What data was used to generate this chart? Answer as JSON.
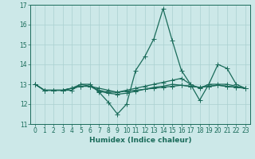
{
  "xlabel": "Humidex (Indice chaleur)",
  "ylabel": "",
  "bg_color": "#cce8e8",
  "grid_color": "#aad0d0",
  "line_color": "#1a6b5a",
  "spine_color": "#1a6b5a",
  "xlim": [
    -0.5,
    23.5
  ],
  "ylim": [
    11,
    17
  ],
  "yticks": [
    11,
    12,
    13,
    14,
    15,
    16,
    17
  ],
  "xticks": [
    0,
    1,
    2,
    3,
    4,
    5,
    6,
    7,
    8,
    9,
    10,
    11,
    12,
    13,
    14,
    15,
    16,
    17,
    18,
    19,
    20,
    21,
    22,
    23
  ],
  "series": [
    {
      "x": [
        0,
        1,
        2,
        3,
        4,
        5,
        6,
        7,
        8,
        9,
        10,
        11,
        12,
        13,
        14,
        15,
        16,
        17,
        18,
        19,
        20,
        21,
        22,
        23
      ],
      "y": [
        13,
        12.7,
        12.7,
        12.7,
        12.7,
        13.0,
        13.0,
        12.6,
        12.1,
        11.5,
        12.0,
        13.7,
        14.4,
        15.3,
        16.8,
        15.2,
        13.7,
        13.0,
        12.2,
        13.0,
        14.0,
        13.8,
        13.0,
        12.8
      ]
    },
    {
      "x": [
        0,
        1,
        2,
        3,
        4,
        5,
        6,
        7,
        8,
        9,
        10,
        11,
        12,
        13,
        14,
        15,
        16,
        17,
        18,
        19,
        20,
        21,
        22,
        23
      ],
      "y": [
        13,
        12.7,
        12.7,
        12.7,
        12.8,
        13.0,
        12.9,
        12.7,
        12.6,
        12.6,
        12.7,
        12.8,
        12.9,
        13.0,
        13.1,
        13.2,
        13.3,
        13.0,
        12.8,
        13.0,
        13.0,
        13.0,
        12.9,
        12.8
      ]
    },
    {
      "x": [
        0,
        1,
        2,
        3,
        4,
        5,
        6,
        7,
        8,
        9,
        10,
        11,
        12,
        13,
        14,
        15,
        16,
        17,
        18,
        19,
        20,
        21,
        22,
        23
      ],
      "y": [
        13,
        12.7,
        12.7,
        12.7,
        12.8,
        12.9,
        12.9,
        12.8,
        12.7,
        12.6,
        12.65,
        12.7,
        12.75,
        12.8,
        12.85,
        12.9,
        12.95,
        12.9,
        12.85,
        12.9,
        12.95,
        12.9,
        12.85,
        12.8
      ]
    },
    {
      "x": [
        0,
        1,
        2,
        3,
        4,
        5,
        6,
        7,
        8,
        9,
        10,
        11,
        12,
        13,
        14,
        15,
        16,
        17,
        18,
        19,
        20,
        21,
        22,
        23
      ],
      "y": [
        13,
        12.7,
        12.7,
        12.7,
        12.8,
        12.9,
        12.9,
        12.65,
        12.55,
        12.5,
        12.55,
        12.65,
        12.75,
        12.85,
        12.9,
        13.0,
        12.95,
        12.9,
        12.85,
        12.9,
        12.95,
        12.9,
        12.85,
        12.8
      ]
    }
  ],
  "marker": "+",
  "marker_size": 4,
  "linewidth": 0.9,
  "label_fontsize": 6.5,
  "tick_fontsize": 5.5
}
